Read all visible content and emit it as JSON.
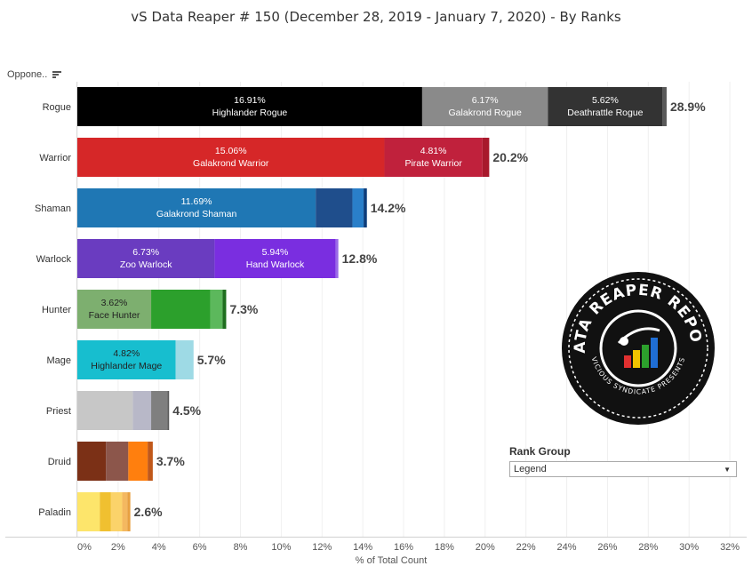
{
  "title": "vS Data Reaper #  150 (December 28, 2019 - January 7, 2020) - By Ranks",
  "row_header": "Oppone..",
  "rank_group": {
    "label": "Rank Group",
    "selected": "Legend"
  },
  "logo": {
    "text_top": "DATA REAPER REPORT",
    "text_bottom": "VICIOUS SYNDICATE PRESENTS"
  },
  "chart_data": {
    "type": "bar",
    "orientation": "horizontal",
    "stacked": true,
    "xlabel": "% of Total Count",
    "xlim": [
      0,
      32
    ],
    "xticks": [
      "0%",
      "2%",
      "4%",
      "6%",
      "8%",
      "10%",
      "12%",
      "14%",
      "16%",
      "18%",
      "20%",
      "22%",
      "24%",
      "26%",
      "28%",
      "30%",
      "32%"
    ],
    "categories": [
      "Rogue",
      "Warrior",
      "Shaman",
      "Warlock",
      "Hunter",
      "Mage",
      "Priest",
      "Druid",
      "Paladin"
    ],
    "rows": [
      {
        "class": "Rogue",
        "total_label": "28.9%",
        "segments": [
          {
            "value": 16.91,
            "label": "16.91%",
            "name": "Highlander Rogue",
            "color": "#000000",
            "text_color": "#ffffff"
          },
          {
            "value": 6.17,
            "label": "6.17%",
            "name": "Galakrond Rogue",
            "color": "#8a8a8a",
            "text_color": "#ffffff"
          },
          {
            "value": 5.62,
            "label": "5.62%",
            "name": "Deathrattle Rogue",
            "color": "#333333",
            "text_color": "#ffffff"
          },
          {
            "value": 0.2,
            "color": "#5a5a5a"
          }
        ]
      },
      {
        "class": "Warrior",
        "total_label": "20.2%",
        "segments": [
          {
            "value": 15.06,
            "label": "15.06%",
            "name": "Galakrond Warrior",
            "color": "#d62728",
            "text_color": "#ffffff"
          },
          {
            "value": 4.81,
            "label": "4.81%",
            "name": "Pirate Warrior",
            "color": "#c0213c",
            "text_color": "#ffffff"
          },
          {
            "value": 0.33,
            "color": "#a8192c"
          }
        ]
      },
      {
        "class": "Shaman",
        "total_label": "14.2%",
        "segments": [
          {
            "value": 11.69,
            "label": "11.69%",
            "name": "Galakrond Shaman",
            "color": "#1f77b4",
            "text_color": "#ffffff"
          },
          {
            "value": 1.8,
            "color": "#1f4e8c"
          },
          {
            "value": 0.55,
            "color": "#2a7fc9"
          },
          {
            "value": 0.16,
            "color": "#0d3d7a"
          }
        ]
      },
      {
        "class": "Warlock",
        "total_label": "12.8%",
        "segments": [
          {
            "value": 6.73,
            "label": "6.73%",
            "name": "Zoo Warlock",
            "color": "#6a3cc0",
            "text_color": "#ffffff"
          },
          {
            "value": 5.94,
            "label": "5.94%",
            "name": "Hand Warlock",
            "color": "#7a2ee0",
            "text_color": "#ffffff"
          },
          {
            "value": 0.13,
            "color": "#9a6ae8"
          }
        ]
      },
      {
        "class": "Hunter",
        "total_label": "7.3%",
        "segments": [
          {
            "value": 3.62,
            "label": "3.62%",
            "name": "Face Hunter",
            "color": "#7daf6f",
            "text_color": "#222222"
          },
          {
            "value": 2.9,
            "color": "#2ca02c"
          },
          {
            "value": 0.6,
            "color": "#5cb85c"
          },
          {
            "value": 0.18,
            "color": "#1e6e1e"
          }
        ]
      },
      {
        "class": "Mage",
        "total_label": "5.7%",
        "segments": [
          {
            "value": 4.82,
            "label": "4.82%",
            "name": "Highlander Mage",
            "color": "#17becf",
            "text_color": "#222222"
          },
          {
            "value": 0.88,
            "color": "#9edae5"
          }
        ]
      },
      {
        "class": "Priest",
        "total_label": "4.5%",
        "segments": [
          {
            "value": 2.72,
            "color": "#c7c7c7"
          },
          {
            "value": 0.9,
            "color": "#b8b8c8"
          },
          {
            "value": 0.8,
            "color": "#7f7f7f"
          },
          {
            "value": 0.08,
            "color": "#5a5a5a"
          }
        ]
      },
      {
        "class": "Druid",
        "total_label": "3.7%",
        "segments": [
          {
            "value": 1.4,
            "color": "#7b3016"
          },
          {
            "value": 1.1,
            "color": "#8c564b"
          },
          {
            "value": 0.95,
            "color": "#ff7f0e"
          },
          {
            "value": 0.25,
            "color": "#c0581a"
          }
        ]
      },
      {
        "class": "Paladin",
        "total_label": "2.6%",
        "segments": [
          {
            "value": 1.1,
            "color": "#fde56b"
          },
          {
            "value": 0.55,
            "color": "#f0c030"
          },
          {
            "value": 0.55,
            "color": "#fbd36a"
          },
          {
            "value": 0.25,
            "color": "#f4b860"
          },
          {
            "value": 0.15,
            "color": "#e8a040"
          }
        ]
      }
    ]
  }
}
